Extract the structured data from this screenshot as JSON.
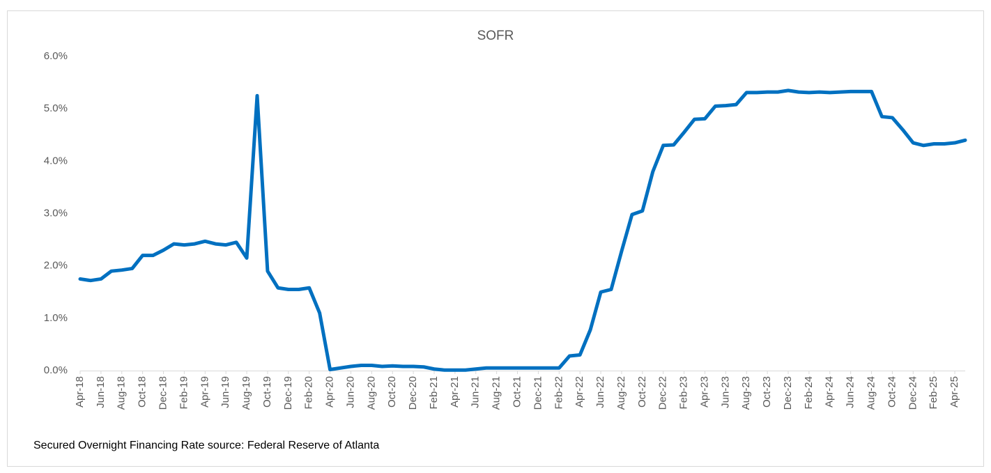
{
  "chart_data": {
    "type": "line",
    "title": "SOFR",
    "note": "Secured Overnight Financing Rate source: Federal Reserve of Atlanta",
    "categories": [
      "Apr-18",
      null,
      "Jun-18",
      null,
      "Aug-18",
      null,
      "Oct-18",
      null,
      "Dec-18",
      null,
      "Feb-19",
      null,
      "Apr-19",
      null,
      "Jun-19",
      null,
      "Aug-19",
      null,
      "Oct-19",
      null,
      "Dec-19",
      null,
      "Feb-20",
      null,
      "Apr-20",
      null,
      "Jun-20",
      null,
      "Aug-20",
      null,
      "Oct-20",
      null,
      "Dec-20",
      null,
      "Feb-21",
      null,
      "Apr-21",
      null,
      "Jun-21",
      null,
      "Aug-21",
      null,
      "Oct-21",
      null,
      "Dec-21",
      null,
      "Feb-22",
      null,
      "Apr-22",
      null,
      "Jun-22",
      null,
      "Aug-22",
      null,
      "Oct-22",
      null,
      "Dec-22",
      null,
      "Feb-23",
      null,
      "Apr-23",
      null,
      "Jun-23",
      null,
      "Aug-23",
      null,
      "Oct-23",
      null,
      "Dec-23",
      null,
      "Feb-24",
      null,
      "Apr-24",
      null,
      "Jun-24",
      null,
      "Aug-24",
      null,
      "Oct-24",
      null,
      "Dec-24",
      null,
      "Feb-25",
      null,
      "Apr-25",
      null
    ],
    "series": [
      {
        "name": "SOFR",
        "color": "#0070c0",
        "values": [
          1.75,
          1.72,
          1.75,
          1.9,
          1.92,
          1.95,
          2.2,
          2.2,
          2.3,
          2.42,
          2.4,
          2.42,
          2.47,
          2.42,
          2.4,
          2.45,
          2.15,
          5.25,
          1.9,
          1.58,
          1.55,
          1.55,
          1.58,
          1.1,
          0.02,
          0.05,
          0.08,
          0.1,
          0.1,
          0.08,
          0.09,
          0.08,
          0.08,
          0.07,
          0.03,
          0.01,
          0.01,
          0.01,
          0.03,
          0.05,
          0.05,
          0.05,
          0.05,
          0.05,
          0.05,
          0.05,
          0.05,
          0.28,
          0.3,
          0.78,
          1.5,
          1.55,
          2.28,
          2.98,
          3.05,
          3.8,
          4.3,
          4.31,
          4.55,
          4.8,
          4.81,
          5.05,
          5.06,
          5.08,
          5.31,
          5.31,
          5.32,
          5.32,
          5.35,
          5.32,
          5.31,
          5.32,
          5.31,
          5.32,
          5.33,
          5.33,
          5.33,
          4.85,
          4.83,
          4.6,
          4.35,
          4.3,
          4.33,
          4.33,
          4.35,
          4.4
        ]
      }
    ],
    "ylim": [
      0,
      6
    ],
    "yticks": [
      {
        "value": 0,
        "label": "0.0%"
      },
      {
        "value": 1,
        "label": "1.0%"
      },
      {
        "value": 2,
        "label": "2.0%"
      },
      {
        "value": 3,
        "label": "3.0%"
      },
      {
        "value": 4,
        "label": "4.0%"
      },
      {
        "value": 5,
        "label": "5.0%"
      },
      {
        "value": 6,
        "label": "6.0%"
      }
    ],
    "grid": false,
    "legend": false
  }
}
